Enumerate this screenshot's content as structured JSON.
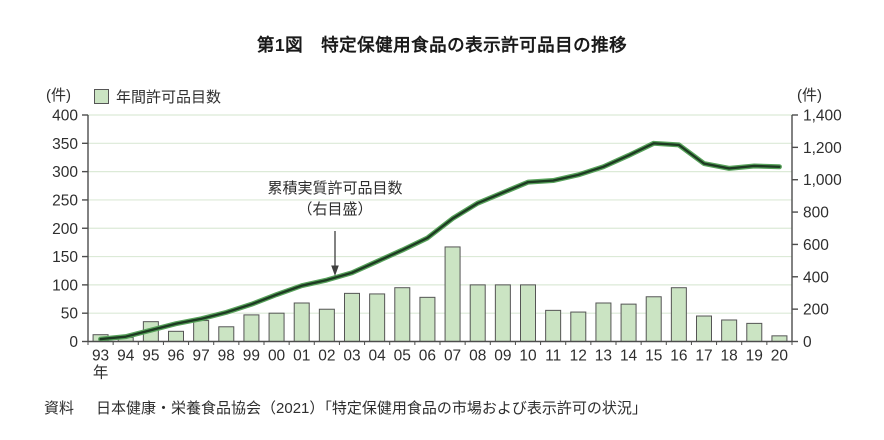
{
  "title": "第1図　特定保健用食品の表示許可品目の推移",
  "footer": {
    "source_label": "資料",
    "source_text": "日本健康・栄養食品協会（2021）「特定保健用食品の市場および表示許可の状況」"
  },
  "chart_data": {
    "type": "bar+line",
    "title": "第1図　特定保健用食品の表示許可品目の推移",
    "categories": [
      "93",
      "94",
      "95",
      "96",
      "97",
      "98",
      "99",
      "00",
      "01",
      "02",
      "03",
      "04",
      "05",
      "06",
      "07",
      "08",
      "09",
      "10",
      "11",
      "12",
      "13",
      "14",
      "15",
      "16",
      "17",
      "18",
      "19",
      "20"
    ],
    "x_axis_suffix": "年",
    "grid": true,
    "legend_position": "top-left",
    "legend_label": "年間許可品目数",
    "left_axis": {
      "unit": "(件)",
      "min": 0,
      "max": 400,
      "step": 50
    },
    "right_axis": {
      "unit": "(件)",
      "min": 0,
      "max": 1400,
      "step": 200
    },
    "annotation": {
      "line1": "累積実質許可品目数",
      "line2": "（右目盛）"
    },
    "colors": {
      "bar_fill": "#cbe4c3",
      "bar_border": "#555555",
      "line_core": "#1d3b22",
      "line_halo": "#58a35b",
      "grid": "#dcead7",
      "axis": "#4d4d4d",
      "text": "#2e2e2e"
    },
    "series": [
      {
        "name": "年間許可品目数",
        "type": "bar",
        "axis": "left",
        "values": [
          12,
          7,
          35,
          18,
          37,
          26,
          47,
          50,
          68,
          57,
          85,
          84,
          95,
          78,
          167,
          100,
          100,
          100,
          55,
          52,
          68,
          66,
          79,
          95,
          45,
          38,
          32,
          10
        ]
      },
      {
        "name": "累積実質許可品目数（右目盛）",
        "type": "line",
        "axis": "right",
        "values": [
          15,
          30,
          70,
          110,
          140,
          180,
          230,
          290,
          345,
          380,
          425,
          495,
          565,
          640,
          760,
          855,
          920,
          985,
          995,
          1030,
          1080,
          1150,
          1225,
          1215,
          1100,
          1070,
          1085,
          1080
        ]
      }
    ]
  }
}
